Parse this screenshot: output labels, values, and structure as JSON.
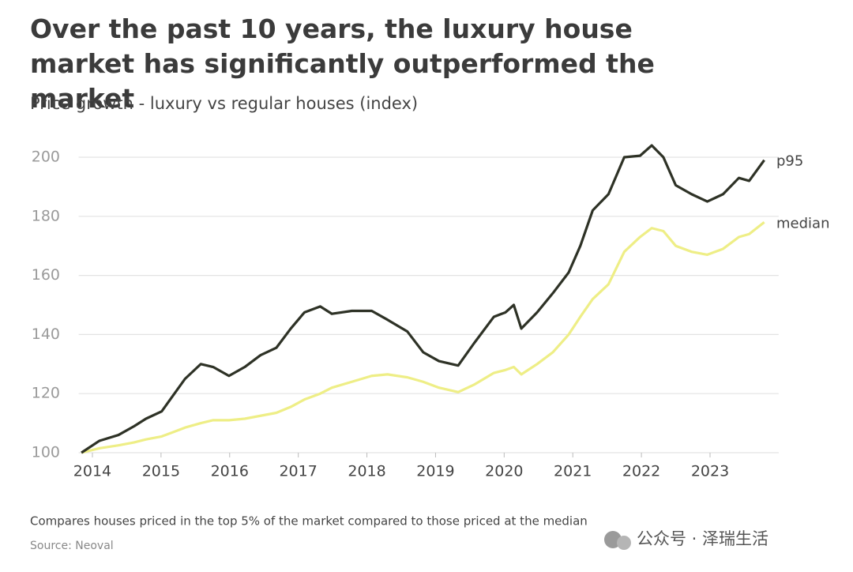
{
  "chart_data": {
    "type": "line",
    "title": "Over the past 10 years, the luxury house market has significantly outperformed the market",
    "subtitle": "Price growth - luxury vs regular houses (index)",
    "footnote": "Compares houses priced in the top 5% of the market compared to those priced at the median",
    "source": "Source: Neoval",
    "watermark": "公众号 · 泽瑞生活",
    "x": [
      2013.84,
      2014.1,
      2014.38,
      2014.61,
      2014.78,
      2015.01,
      2015.18,
      2015.35,
      2015.58,
      2015.76,
      2015.99,
      2016.22,
      2016.45,
      2016.68,
      2016.89,
      2017.09,
      2017.32,
      2017.49,
      2017.78,
      2018.07,
      2018.3,
      2018.59,
      2018.82,
      2019.05,
      2019.33,
      2019.56,
      2019.85,
      2020.02,
      2020.14,
      2020.25,
      2020.48,
      2020.71,
      2020.94,
      2021.11,
      2021.29,
      2021.52,
      2021.75,
      2021.98,
      2022.15,
      2022.32,
      2022.5,
      2022.73,
      2022.96,
      2023.19,
      2023.42,
      2023.57,
      2023.79
    ],
    "series": [
      {
        "name": "p95",
        "color": "#2e3226",
        "values": [
          100,
          104,
          106,
          109,
          111.5,
          114,
          119.5,
          125,
          130,
          129,
          126,
          129,
          133,
          135.5,
          142,
          147.5,
          149.5,
          147,
          148,
          148,
          145,
          141,
          134,
          131,
          129.5,
          137,
          146,
          147.5,
          150,
          142,
          147.5,
          154,
          161,
          170,
          182,
          187.5,
          200,
          200.5,
          204,
          200,
          190.5,
          187.5,
          185,
          187.5,
          193,
          192,
          199
        ]
      },
      {
        "name": "median",
        "color": "#eeee86",
        "values": [
          100,
          101.5,
          102.5,
          103.5,
          104.5,
          105.5,
          107,
          108.5,
          110,
          111,
          111,
          111.5,
          112.5,
          113.5,
          115.5,
          118,
          120,
          122,
          124,
          126,
          126.5,
          125.5,
          124,
          122,
          120.5,
          123,
          127,
          128,
          129,
          126.5,
          130,
          134,
          140,
          146,
          152,
          157,
          168,
          173,
          176,
          175,
          170,
          168,
          167,
          169,
          173,
          174,
          178
        ]
      }
    ],
    "xlim": [
      2013.8,
      2024.0
    ],
    "xticks": [
      2014,
      2015,
      2016,
      2017,
      2018,
      2019,
      2020,
      2021,
      2022,
      2023
    ],
    "ylim": [
      100,
      200
    ],
    "yticks": [
      100,
      120,
      140,
      160,
      180,
      200
    ],
    "grid": true
  }
}
